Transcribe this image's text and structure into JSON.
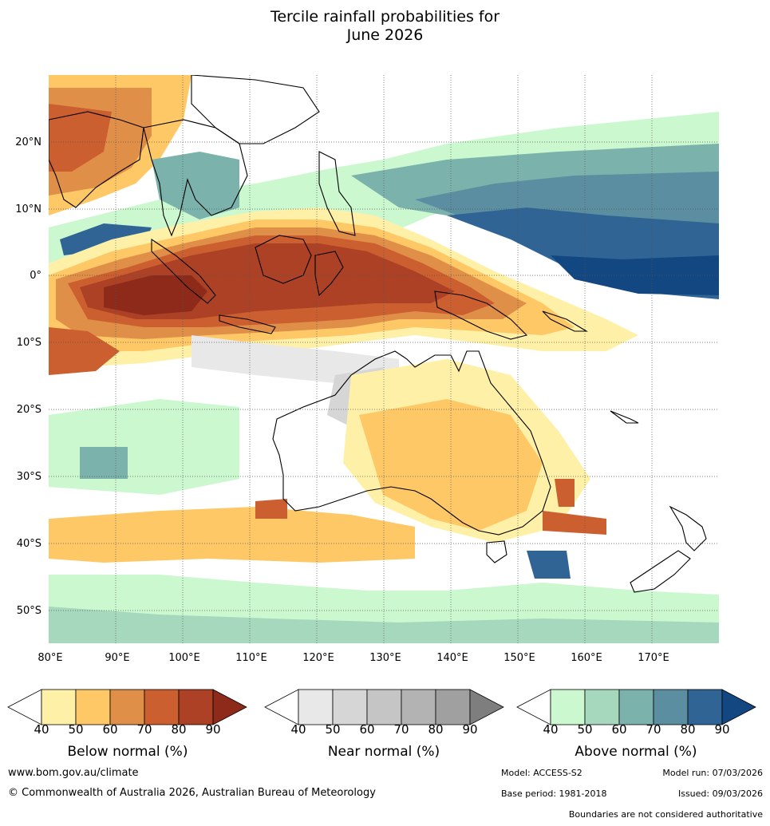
{
  "title_line1": "Tercile rainfall probabilities for",
  "title_line2": "June 2026",
  "map": {
    "lat_labels": [
      "20°N",
      "10°N",
      "0°",
      "10°S",
      "20°S",
      "30°S",
      "40°S",
      "50°S"
    ],
    "lon_labels": [
      "80°E",
      "90°E",
      "100°E",
      "110°E",
      "120°E",
      "130°E",
      "140°E",
      "150°E",
      "160°E",
      "170°E"
    ],
    "lon_range": [
      80,
      180
    ],
    "lat_range": [
      -55,
      30
    ]
  },
  "legends": {
    "below": {
      "label": "Below normal (%)",
      "ticks": [
        "40",
        "50",
        "60",
        "70",
        "80",
        "90"
      ],
      "colors": [
        "#fff0a8",
        "#fec866",
        "#e08f48",
        "#cc5f30",
        "#ad4126",
        "#8e2a1a"
      ]
    },
    "near": {
      "label": "Near normal (%)",
      "ticks": [
        "40",
        "50",
        "60",
        "70",
        "80",
        "90"
      ],
      "colors": [
        "#e8e8e8",
        "#d6d6d6",
        "#c5c5c5",
        "#b3b3b3",
        "#a0a0a0",
        "#7e7e7e"
      ]
    },
    "above": {
      "label": "Above normal (%)",
      "ticks": [
        "40",
        "50",
        "60",
        "70",
        "80",
        "90"
      ],
      "colors": [
        "#cbf8cf",
        "#a5d8bd",
        "#7bb3ac",
        "#5a8ea0",
        "#2f6495",
        "#124781"
      ]
    }
  },
  "footer": {
    "url": "www.bom.gov.au/climate",
    "copyright": "© Commonwealth of Australia 2026, Australian Bureau of Meteorology",
    "model": "Model: ACCESS-S2",
    "model_run": "Model run: 07/03/2026",
    "base_period": "Base period: 1981-2018",
    "issued": "Issued: 09/03/2026",
    "disclaimer": "Boundaries are not considered authoritative"
  }
}
